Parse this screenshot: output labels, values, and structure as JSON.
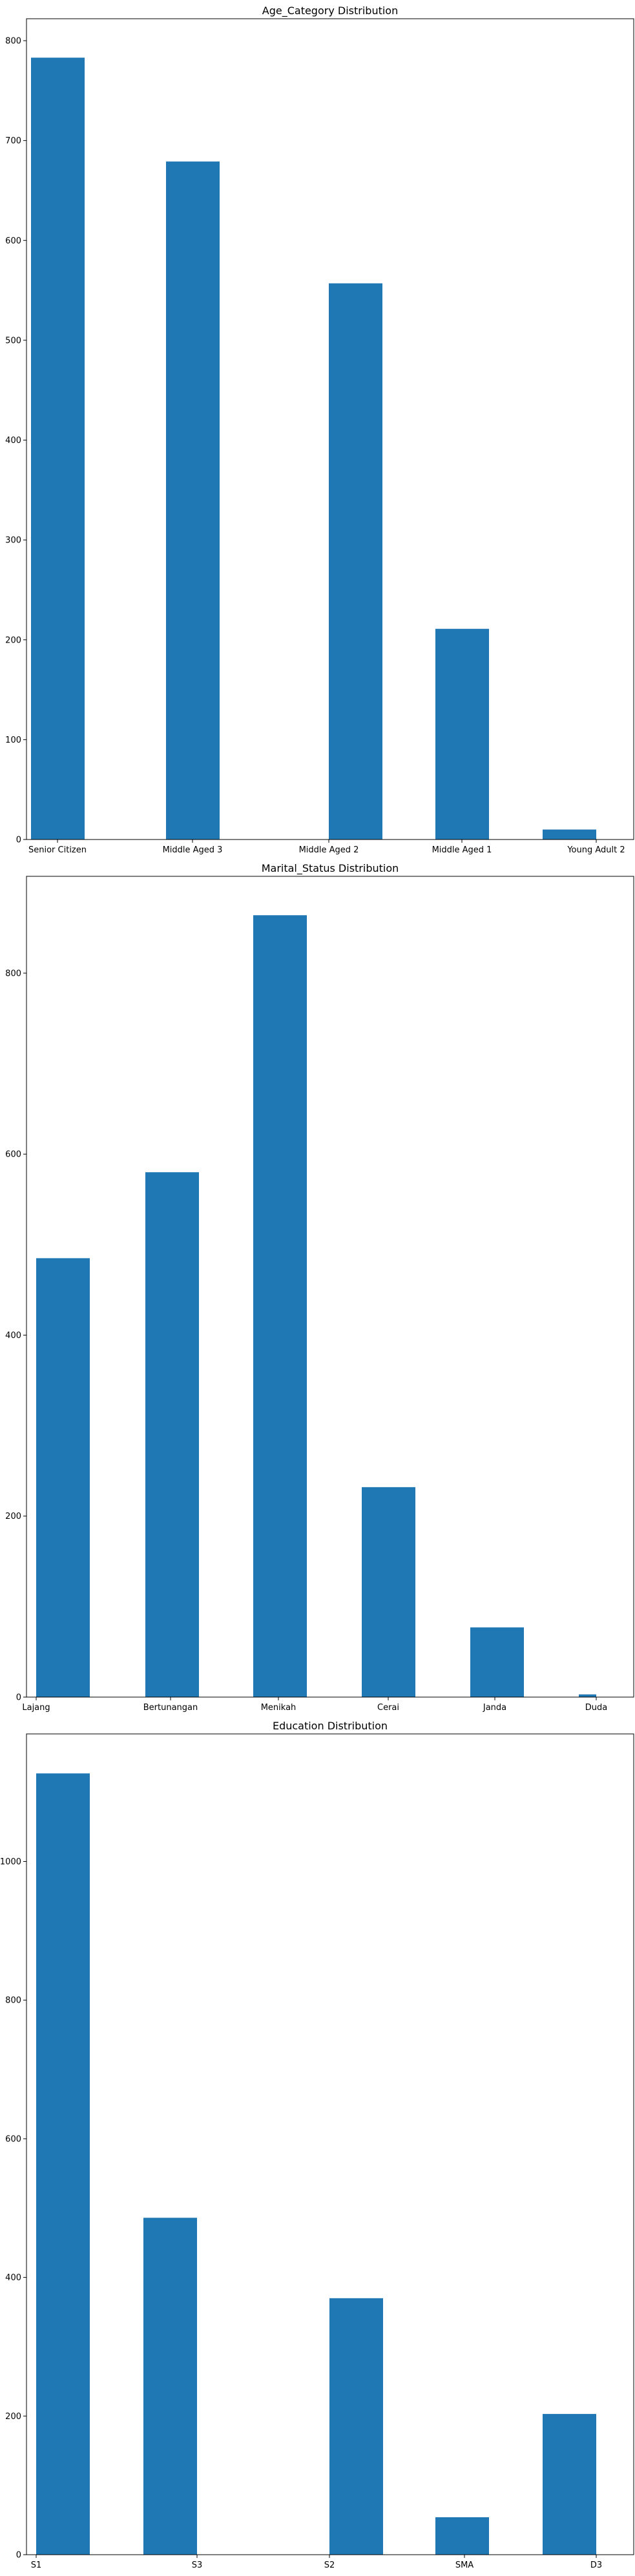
{
  "chart_data": [
    {
      "type": "bar",
      "title": "Age_Category Distribution",
      "xlabel": "",
      "ylabel": "",
      "categories": [
        "Senior Citizen",
        "Middle Aged 3",
        "Middle Aged 2",
        "Middle Aged 1",
        "Young Adult 2"
      ],
      "series": [
        {
          "values": [
            783,
            679,
            557,
            211,
            10
          ]
        }
      ],
      "ylim": [
        0,
        822
      ],
      "yticks": [
        0,
        100,
        200,
        300,
        400,
        500,
        600,
        700,
        800
      ],
      "grid": false,
      "color": "#1f77b4"
    },
    {
      "type": "bar",
      "title": "Marital_Status Distribution",
      "xlabel": "",
      "ylabel": "",
      "categories": [
        "Lajang",
        "Bertunangan",
        "Menikah",
        "Cerai",
        "Janda",
        "Duda"
      ],
      "series": [
        {
          "values": [
            485,
            580,
            864,
            232,
            77,
            3
          ]
        }
      ],
      "ylim": [
        0,
        907
      ],
      "yticks": [
        0,
        200,
        400,
        600,
        800
      ],
      "grid": false,
      "color": "#1f77b4"
    },
    {
      "type": "bar",
      "title": "Education Distribution",
      "xlabel": "",
      "ylabel": "",
      "categories": [
        "S1",
        "S3",
        "S2",
        "SMA",
        "D3"
      ],
      "series": [
        {
          "values": [
            1127,
            486,
            370,
            54,
            203
          ]
        }
      ],
      "ylim": [
        0,
        1184
      ],
      "yticks": [
        0,
        200,
        400,
        600,
        800,
        1000
      ],
      "grid": false,
      "color": "#1f77b4"
    }
  ]
}
